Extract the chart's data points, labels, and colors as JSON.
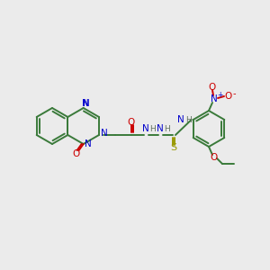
{
  "bg_color": "#ebebeb",
  "bond_color": "#3a7a3a",
  "blue_color": "#0000cc",
  "red_color": "#cc0000",
  "yellow_color": "#999900",
  "gray_color": "#607060",
  "line_width": 1.4,
  "figsize": [
    3.0,
    3.0
  ],
  "dpi": 100,
  "notes": "N-(4-ethoxy-2-nitrophenyl)-2-[(1-oxophthalazin-2(1H)-yl)acetyl]hydrazinecarbothioamide"
}
